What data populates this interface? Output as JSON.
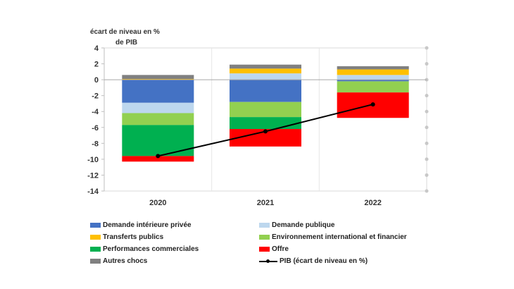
{
  "chart_data": {
    "type": "bar",
    "stacked": true,
    "ylabel": "écart de niveau en % de PIB",
    "ylabel_lines": [
      "écart de niveau en %",
      "de PIB"
    ],
    "categories": [
      "2020",
      "2021",
      "2022"
    ],
    "ylim": [
      -14,
      4
    ],
    "yticks": [
      4,
      2,
      0,
      -2,
      -4,
      -6,
      -8,
      -10,
      -12,
      -14
    ],
    "grid": false,
    "legend_position": "bottom",
    "series": [
      {
        "name": "Demande intérieure privée",
        "color": "#4472C4",
        "values": [
          -2.9,
          -2.8,
          -0.2
        ]
      },
      {
        "name": "Demande publique",
        "color": "#BDD7EE",
        "values": [
          -1.3,
          0.8,
          0.6
        ]
      },
      {
        "name": "Transferts publics",
        "color": "#FFC000",
        "values": [
          0.1,
          0.6,
          0.7
        ]
      },
      {
        "name": "Environnement international et financier",
        "color": "#92D050",
        "values": [
          -1.5,
          -1.9,
          -1.4
        ]
      },
      {
        "name": "Performances commerciales",
        "color": "#00B050",
        "values": [
          -3.9,
          -1.5,
          0.0
        ]
      },
      {
        "name": "Offre",
        "color": "#FF0000",
        "values": [
          -0.7,
          -2.2,
          -3.2
        ]
      },
      {
        "name": "Autres chocs",
        "color": "#808080",
        "values": [
          0.5,
          0.5,
          0.4
        ]
      }
    ],
    "line": {
      "name": "PIB (écart de niveau en %)",
      "color": "#000000",
      "values": [
        -9.6,
        -6.5,
        -3.1
      ]
    }
  }
}
